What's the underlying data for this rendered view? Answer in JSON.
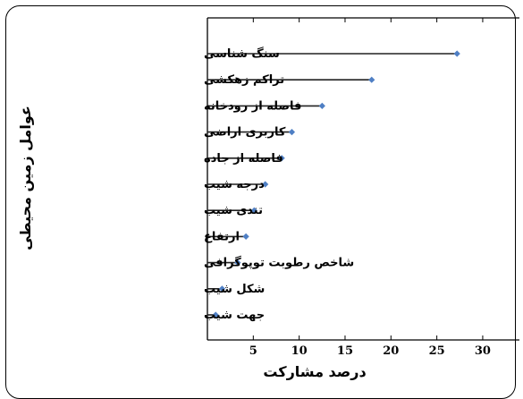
{
  "chart_data": {
    "type": "lollipop",
    "categories": [
      "سنگ شناسی",
      "تراکم زهکشی",
      "فاصله از رودخانه",
      "کاربری اراضی",
      "فاصله از جاده",
      "درجه شیب",
      "تندی شیب",
      "ارتفاع",
      "شاخص رطوبت توپوگرافی",
      "شکل شیب",
      "جهت شیب"
    ],
    "values": [
      27.2,
      17.9,
      12.5,
      9.2,
      8.1,
      6.3,
      5.1,
      4.2,
      3.3,
      1.6,
      0.9
    ],
    "xticks": [
      5,
      10,
      15,
      20,
      25,
      30
    ],
    "xlim": [
      0,
      34
    ],
    "xlabel": "درصد مشارکت",
    "ylabel": "عوامل زمین محیطی",
    "title": "",
    "colors": {
      "marker": "#4f7fc4",
      "line": "#222222",
      "axis": "#000000"
    }
  }
}
